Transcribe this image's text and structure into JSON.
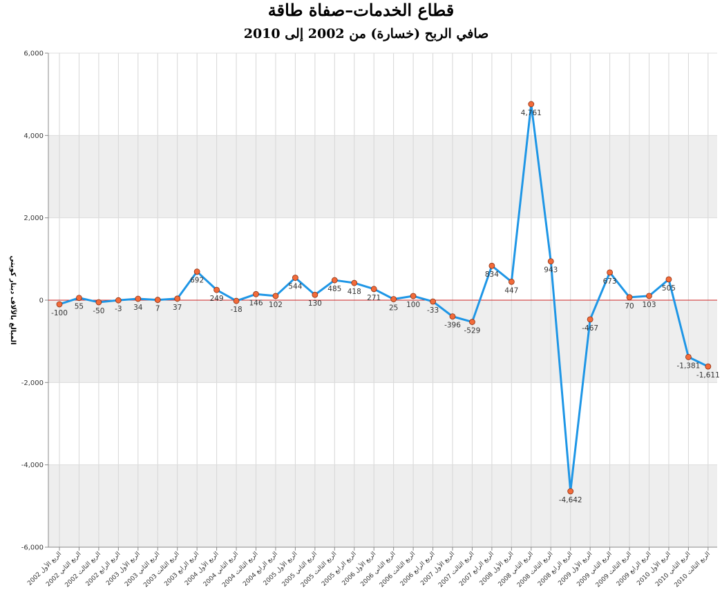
{
  "chart_data": {
    "type": "line",
    "title": "قطاع الخدمات–صفاة طاقة",
    "subtitle": "صافي الربح (خسارة) من 2002 إلى 2010",
    "ylabel": "المبالغ بالآلاف دينار كويتي",
    "ylim": [
      -6000,
      6000
    ],
    "yticks": [
      -6000,
      -4000,
      -2000,
      0,
      2000,
      4000,
      6000
    ],
    "ytick_labels": [
      "-6,000",
      "-4,000",
      "-2,000",
      "0",
      "2,000",
      "4,000",
      "6,000"
    ],
    "grid": true,
    "categories": [
      "الربع الأول 2002",
      "الربع الثاني 2002",
      "الربع الثالث 2002",
      "الربع الرابع 2002",
      "الربع الأول 2003",
      "الربع الثاني 2003",
      "الربع الثالث 2003",
      "الربع الرابع 2003",
      "الربع الأول 2004",
      "الربع الثاني 2004",
      "الربع الثالث 2004",
      "الربع الرابع 2004",
      "الربع الأول 2005",
      "الربع الثاني 2005",
      "الربع الثالث 2005",
      "الربع الرابع 2005",
      "الربع الأول 2006",
      "الربع الثاني 2006",
      "الربع الثالث 2006",
      "الربع الرابع 2006",
      "الربع الأول 2007",
      "الربع الثالث 2007",
      "الربع الرابع 2007",
      "الربع الأول 2008",
      "الربع الثاني 2008",
      "الربع الثالث 2008",
      "الربع الرابع 2008",
      "الربع الأول 2009",
      "الربع الثاني 2009",
      "الربع الثالث 2009",
      "الربع الرابع 2009",
      "الربع الأول 2010",
      "الربع الثاني 2010",
      "الربع الثالث 2010"
    ],
    "values": [
      -100,
      55,
      -50,
      -3,
      34,
      7,
      37,
      692,
      249,
      -18,
      146,
      102,
      544,
      130,
      485,
      418,
      271,
      25,
      100,
      -33,
      -396,
      -529,
      834,
      447,
      4761,
      943,
      -4642,
      -467,
      673,
      70,
      103,
      505,
      -1381,
      -1611
    ],
    "data_labels": [
      "-100",
      "55",
      "-50",
      "-3",
      "34",
      "7",
      "37",
      "692",
      "249",
      "-18",
      "146",
      "102",
      "544",
      "130",
      "485",
      "418",
      "271",
      "25",
      "100",
      "-33",
      "-396",
      "-529",
      "834",
      "447",
      "4,761",
      "943",
      "-4,642",
      "-467",
      "673",
      "70",
      "103",
      "505",
      "-1,381",
      "-1,611"
    ],
    "colors": {
      "line": "#1e96e6",
      "marker": "#f26b3a",
      "marker_edge": "#8a2f12",
      "zero_line": "#cc2222",
      "band": "#eeeeee"
    }
  }
}
